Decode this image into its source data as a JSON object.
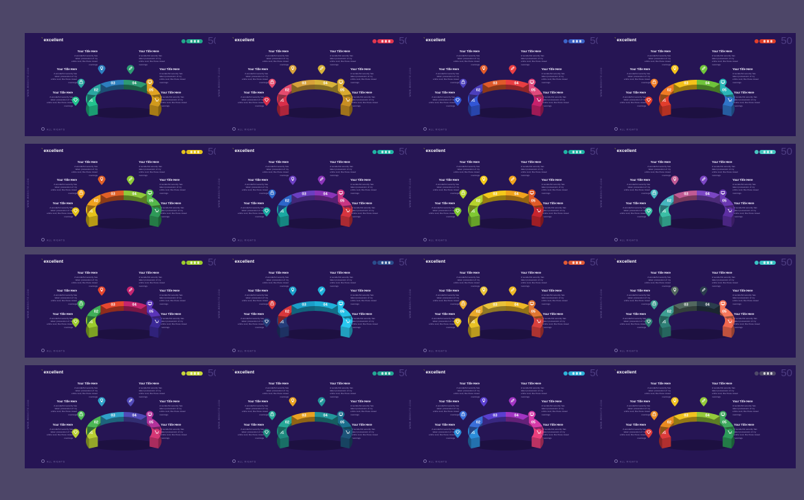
{
  "brand": "excellent",
  "page_number": "50",
  "side_text": "WWW.WEBSITE.COM",
  "footer_text": "ALL RIGHTS",
  "block_title": "Your Title Here",
  "block_text": "A wonderful serenity has taken possession of my entire soul, like these sweet mornings",
  "segment_labels": [
    "01",
    "02",
    "03",
    "04",
    "05",
    "06"
  ],
  "icons": [
    "diamond-icon",
    "lock-icon",
    "lightbulb-icon",
    "pencil-icon",
    "monitor-icon",
    "cart-icon"
  ],
  "slides": [
    {
      "accent": "#21a88a",
      "colors": [
        "#22c38e",
        "#2aa6a0",
        "#2d7fbf",
        "#2d9a73",
        "#e0a323",
        "#d19a1c"
      ]
    },
    {
      "accent": "#e2364e",
      "colors": [
        "#d92e4a",
        "#e44b6e",
        "#d8a13a",
        "#d7b23a",
        "#d9a92f",
        "#c88e22"
      ]
    },
    {
      "accent": "#3d64c8",
      "colors": [
        "#3256d6",
        "#4c3fbc",
        "#e05a2a",
        "#e93e42",
        "#e0497c",
        "#c7216c"
      ]
    },
    {
      "accent": "#e23f2a",
      "colors": [
        "#e23d2b",
        "#f07b24",
        "#f5c21a",
        "#6fc43b",
        "#2bb5b8",
        "#2f74c8"
      ]
    },
    {
      "accent": "#e4c21d",
      "colors": [
        "#e5c219",
        "#f0a21f",
        "#e06027",
        "#8fc93a",
        "#55b84a",
        "#2e9a58"
      ]
    },
    {
      "accent": "#20b4a4",
      "colors": [
        "#1aa8a1",
        "#2c66c9",
        "#6b3fc1",
        "#8a34b8",
        "#c93583",
        "#d6343f"
      ]
    },
    {
      "accent": "#20b4a4",
      "colors": [
        "#7fc932",
        "#b5d32d",
        "#f4c91b",
        "#f0a31d",
        "#e05a27",
        "#c7252e"
      ]
    },
    {
      "accent": "#48c7c2",
      "colors": [
        "#3bbfa5",
        "#45b4be",
        "#c05a94",
        "#7a46c3",
        "#6a38b2",
        "#5d2fa2"
      ]
    },
    {
      "accent": "#9ecb2d",
      "colors": [
        "#9ccc2c",
        "#40ad58",
        "#e6472e",
        "#c4256f",
        "#5a34b8",
        "#3c2a98"
      ]
    },
    {
      "accent": "#2b4d8c",
      "colors": [
        "#243d7a",
        "#d8373c",
        "#1b9fc9",
        "#1fb1d9",
        "#24c0e6",
        "#29c7ee"
      ]
    },
    {
      "accent": "#e25a35",
      "colors": [
        "#e8c125",
        "#e9a82b",
        "#e9c23a",
        "#edb826",
        "#e07631",
        "#d8403d"
      ]
    },
    {
      "accent": "#39c2c4",
      "colors": [
        "#2f8076",
        "#3e9e92",
        "#52685f",
        "#2b3e4d",
        "#f5785d",
        "#f0674e"
      ]
    },
    {
      "accent": "#c8d63a",
      "colors": [
        "#b9cf33",
        "#4cb755",
        "#2fa1c8",
        "#514ab8",
        "#b3339b",
        "#d43775"
      ]
    },
    {
      "accent": "#24a794",
      "colors": [
        "#1f8b7f",
        "#26a797",
        "#e8a122",
        "#23969b",
        "#1b6f8e",
        "#1d5479"
      ]
    },
    {
      "accent": "#2fb3d9",
      "colors": [
        "#2c8dd9",
        "#3a6ed7",
        "#5a3fd0",
        "#a135c2",
        "#d63aa8",
        "#ea3f7c"
      ]
    },
    {
      "accent": "#4f4a68",
      "colors": [
        "#dd3b3b",
        "#e98a22",
        "#f0c220",
        "#94c93b",
        "#3fa95f",
        "#2c9a59"
      ]
    }
  ]
}
